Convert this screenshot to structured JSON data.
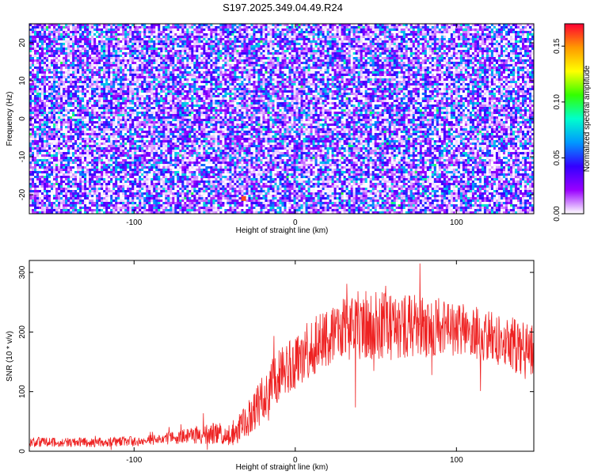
{
  "title": "S197.2025.349.04.49.R24",
  "chart_data": [
    {
      "type": "heatmap",
      "title": "S197.2025.349.04.49.R24",
      "xlabel": "Height of straight line (km)",
      "ylabel": "Frequency (Hz)",
      "xlim": [
        -165,
        148
      ],
      "ylim": [
        -25,
        25
      ],
      "xticks": [
        -100,
        0,
        100
      ],
      "xtick_labels": [
        "-100",
        "0",
        "100"
      ],
      "yticks": [
        -20,
        -10,
        0,
        10,
        20
      ],
      "ytick_labels": [
        "-20",
        "-10",
        "0",
        "10",
        "20"
      ],
      "colorbar": {
        "label": "Normalized spectral amplitude",
        "range": [
          0,
          0.17
        ],
        "ticks": [
          0,
          0.05,
          0.1,
          0.15
        ],
        "tick_labels": [
          "0.00",
          "0.05",
          "0.10",
          "0.15"
        ],
        "colors": [
          "#ffffff",
          "#9900ff",
          "#3300ff",
          "#0099ff",
          "#00ffcc",
          "#33ff00",
          "#ffff00",
          "#ff9900",
          "#ff0033"
        ]
      },
      "typical_amplitude": 0.04,
      "peak_amplitude": 0.16
    },
    {
      "type": "line",
      "xlabel": "Height of straight line (km)",
      "ylabel": "SNR (10 * v/v)",
      "xlim": [
        -165,
        148
      ],
      "ylim": [
        0,
        320
      ],
      "xticks": [
        -100,
        0,
        100
      ],
      "xtick_labels": [
        "-100",
        "0",
        "100"
      ],
      "yticks": [
        0,
        100,
        200,
        300
      ],
      "ytick_labels": [
        "0",
        "100",
        "200",
        "300"
      ],
      "color": "#ee2222",
      "series": [
        {
          "name": "SNR",
          "envelope_x": [
            -165,
            -120,
            -90,
            -70,
            -50,
            -40,
            -30,
            -20,
            -10,
            0,
            10,
            20,
            30,
            40,
            50,
            70,
            90,
            110,
            130,
            148
          ],
          "envelope_y": [
            15,
            15,
            18,
            25,
            30,
            28,
            50,
            90,
            130,
            150,
            175,
            190,
            205,
            210,
            210,
            210,
            208,
            200,
            185,
            160
          ],
          "noise_amplitude": [
            8,
            8,
            9,
            12,
            18,
            20,
            30,
            40,
            45,
            45,
            48,
            50,
            55,
            60,
            60,
            55,
            50,
            45,
            45,
            50
          ],
          "max_value": 315
        }
      ]
    }
  ]
}
